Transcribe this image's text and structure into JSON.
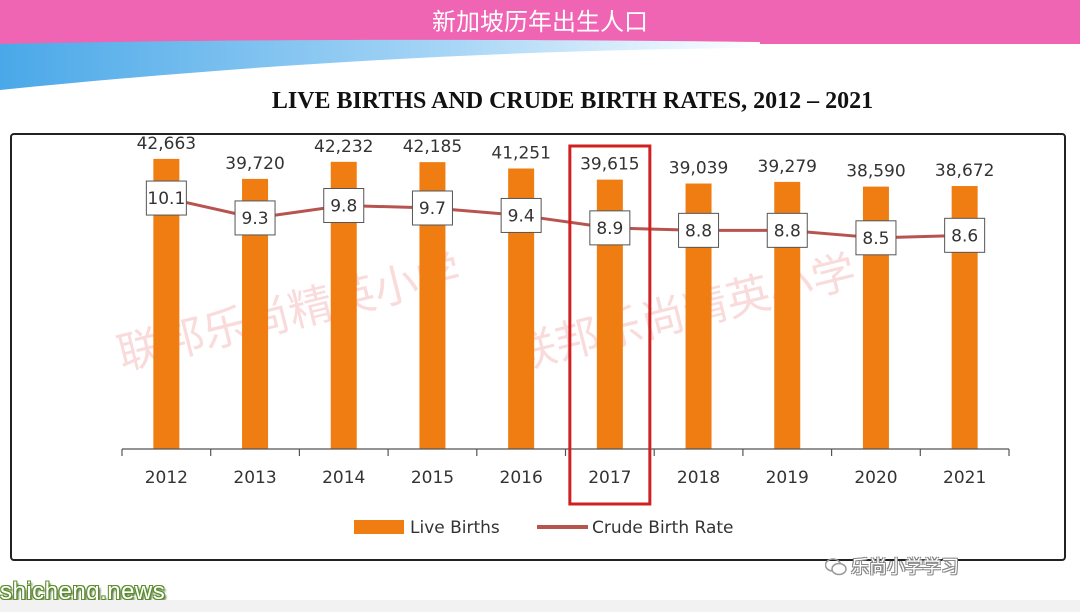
{
  "banner": {
    "title": "新加坡历年出生人口"
  },
  "chart_data": {
    "type": "bar",
    "title": "LIVE BIRTHS AND CRUDE BIRTH RATES, 2012 – 2021",
    "categories": [
      "2012",
      "2013",
      "2014",
      "2015",
      "2016",
      "2017",
      "2018",
      "2019",
      "2020",
      "2021"
    ],
    "series": [
      {
        "name": "Live Births",
        "kind": "bar",
        "values": [
          42663,
          39720,
          42232,
          42185,
          41251,
          39615,
          39039,
          39279,
          38590,
          38672
        ],
        "labels": [
          "42,663",
          "39,720",
          "42,232",
          "42,185",
          "41,251",
          "39,615",
          "39,039",
          "39,279",
          "38,590",
          "38,672"
        ],
        "color": "#f07d12"
      },
      {
        "name": "Crude Birth Rate",
        "kind": "line",
        "values": [
          10.1,
          9.3,
          9.8,
          9.7,
          9.4,
          8.9,
          8.8,
          8.8,
          8.5,
          8.6
        ],
        "labels": [
          "10.1",
          "9.3",
          "9.8",
          "9.7",
          "9.4",
          "8.9",
          "8.8",
          "8.8",
          "8.5",
          "8.6"
        ],
        "color": "#b85450"
      }
    ],
    "ylim_bars": [
      0,
      50000
    ],
    "ylim_rate": [
      0,
      13
    ],
    "highlight": {
      "category": "2017",
      "color": "#d02020"
    },
    "legend_position": "bottom",
    "grid": false
  },
  "watermarks": [
    "联邦乐尚精英小学",
    "联邦乐尚精英小学"
  ],
  "footer": {
    "site": "shicheng.news",
    "wechat": "乐尚小学学习"
  }
}
